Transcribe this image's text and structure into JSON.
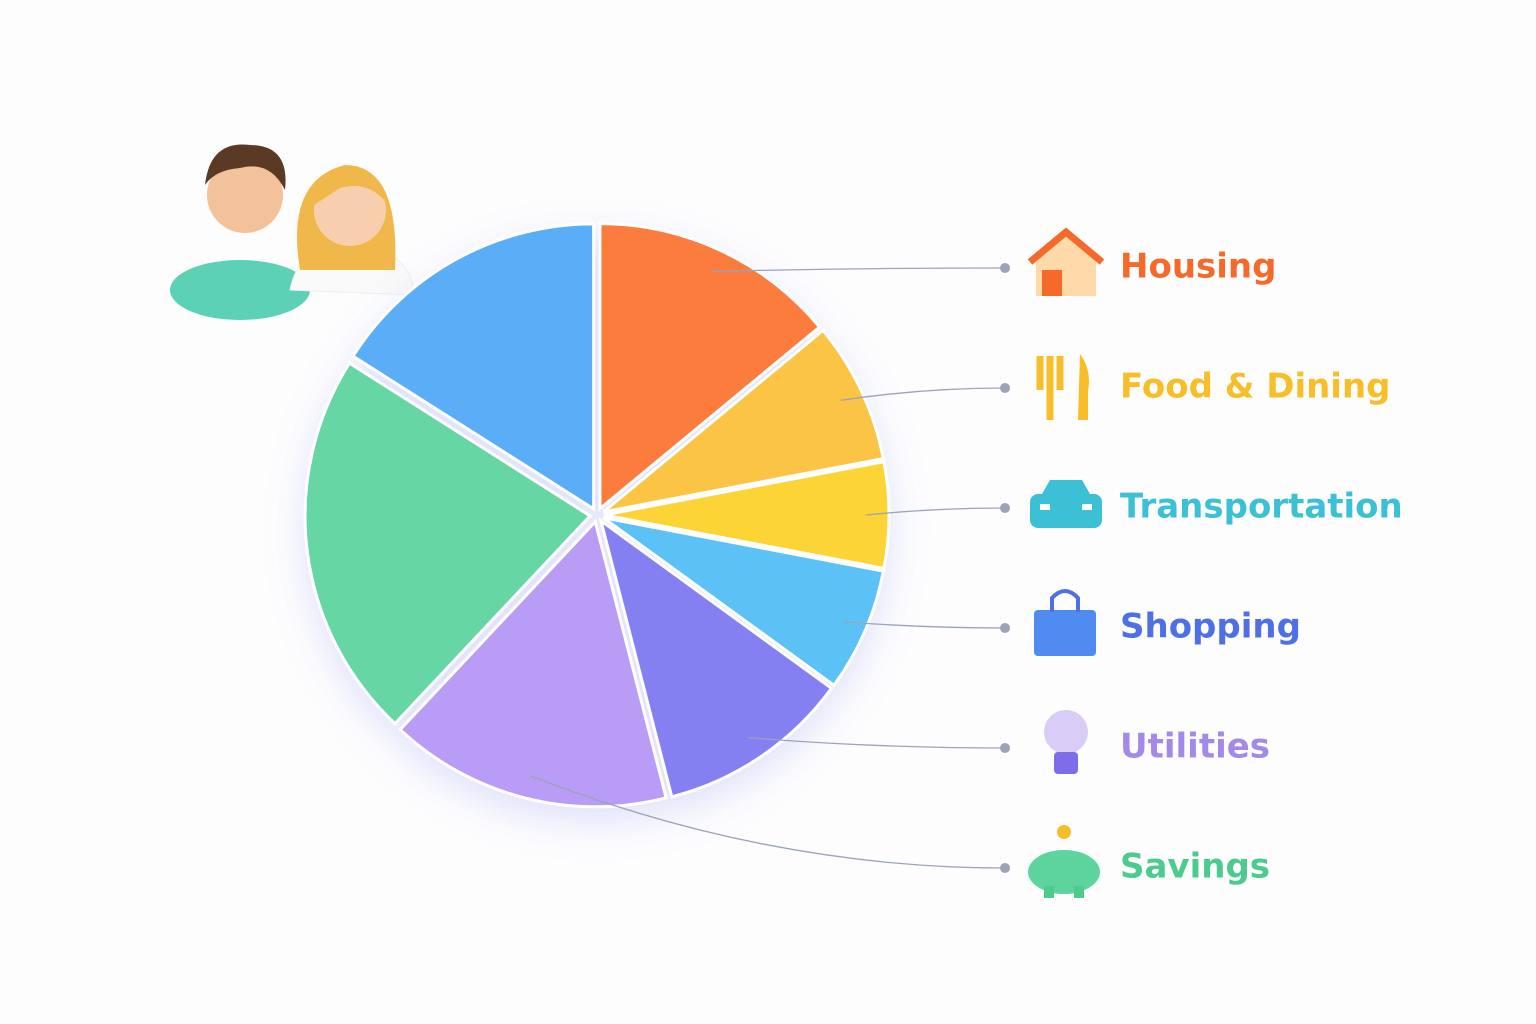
{
  "chart_data": {
    "type": "pie",
    "categories": [
      "Housing",
      "Food & Dining",
      "Transportation",
      "Shopping",
      "Utilities",
      "Savings",
      null,
      null
    ],
    "values": [
      14,
      8,
      6,
      7,
      11,
      16,
      22,
      16
    ],
    "colors": [
      "#fb7c3c",
      "#fcc444",
      "#fdd435",
      "#5bc2f6",
      "#8580f2",
      "#b89cf6",
      "#66d6a4",
      "#5aaef7"
    ],
    "label_colors": [
      "#f56a2a",
      "#f8be2a",
      "#3cc0d6",
      "#4f6fe6",
      "#a48ae8",
      "#4dcb8f"
    ]
  }
}
